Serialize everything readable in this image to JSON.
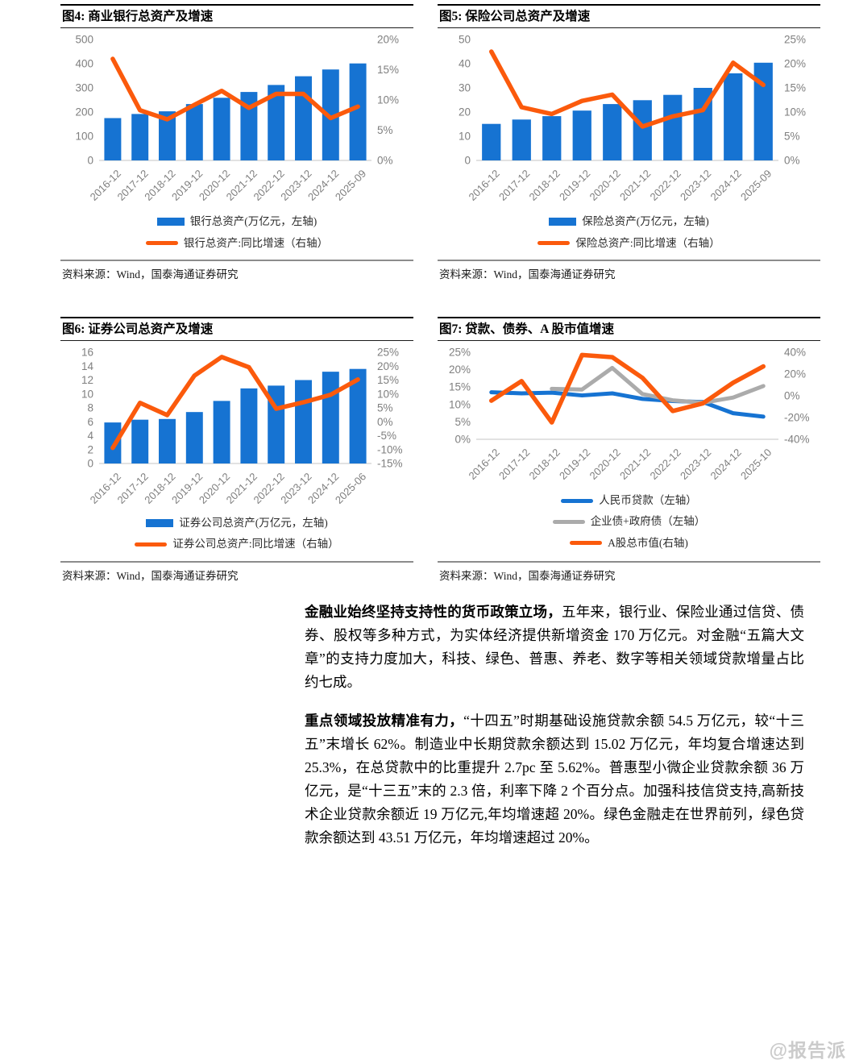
{
  "page": {
    "watermark": "@报告派"
  },
  "figures": [
    {
      "title": "图4:  商业银行总资产及增速",
      "source": "资料来源：Wind，国泰海通证券研究",
      "legend": [
        {
          "label": "银行总资产(万亿元，左轴)",
          "type": "bar",
          "color": "#1673D2"
        },
        {
          "label": "银行总资产:同比增速（右轴）",
          "type": "line",
          "color": "#FB5A0C"
        }
      ],
      "chart_data": {
        "type": "bar+line combo, dual axis",
        "categories": [
          "2016-12",
          "2017-12",
          "2018-12",
          "2019-12",
          "2020-12",
          "2021-12",
          "2022-12",
          "2023-12",
          "2024-12",
          "2025-09"
        ],
        "left_axis": {
          "min": 0,
          "max": 500,
          "step": 100,
          "suffix": ""
        },
        "right_axis": {
          "min": 0,
          "max": 20,
          "step": 5,
          "suffix": "%"
        },
        "series": [
          {
            "name": "银行总资产(万亿元，左轴)",
            "type": "bar",
            "axis": "left",
            "color": "#1673D2",
            "values": [
              175,
              192,
              203,
              233,
              259,
              283,
              312,
              348,
              376,
              401
            ]
          },
          {
            "name": "银行总资产:同比增速（右轴）",
            "type": "line",
            "axis": "right",
            "color": "#FB5A0C",
            "values": [
              16.8,
              8.3,
              6.8,
              9.2,
              11.5,
              8.7,
              11.0,
              11.0,
              7.0,
              8.9
            ]
          }
        ]
      }
    },
    {
      "title": "图5:  保险公司总资产及增速",
      "source": "资料来源：Wind，国泰海通证券研究",
      "legend": [
        {
          "label": "保险总资产(万亿元，左轴)",
          "type": "bar",
          "color": "#1673D2"
        },
        {
          "label": "保险总资产:同比增速（右轴）",
          "type": "line",
          "color": "#FB5A0C"
        }
      ],
      "chart_data": {
        "type": "bar+line combo, dual axis",
        "categories": [
          "2016-12",
          "2017-12",
          "2018-12",
          "2019-12",
          "2020-12",
          "2021-12",
          "2022-12",
          "2023-12",
          "2024-12",
          "2025-09"
        ],
        "left_axis": {
          "min": 0,
          "max": 50,
          "step": 10,
          "suffix": ""
        },
        "right_axis": {
          "min": 0,
          "max": 25,
          "step": 5,
          "suffix": "%"
        },
        "series": [
          {
            "name": "保险总资产(万亿元，左轴)",
            "type": "bar",
            "axis": "left",
            "color": "#1673D2",
            "values": [
              15.1,
              16.9,
              18.3,
              20.6,
              23.3,
              24.9,
              27.1,
              30.0,
              36.0,
              40.4
            ]
          },
          {
            "name": "保险总资产:同比增速（右轴）",
            "type": "line",
            "axis": "right",
            "color": "#FB5A0C",
            "values": [
              22.5,
              11.0,
              9.6,
              12.3,
              13.6,
              7.0,
              9.1,
              10.4,
              20.2,
              15.6
            ]
          }
        ]
      }
    },
    {
      "title": "图6:  证券公司总资产及增速",
      "source": "资料来源：Wind，国泰海通证券研究",
      "legend": [
        {
          "label": "证券公司总资产(万亿元，左轴)",
          "type": "bar",
          "color": "#1673D2"
        },
        {
          "label": "证券公司总资产:同比增速（右轴）",
          "type": "line",
          "color": "#FB5A0C"
        }
      ],
      "chart_data": {
        "type": "bar+line combo, dual axis",
        "categories": [
          "2016-12",
          "2017-12",
          "2018-12",
          "2019-12",
          "2020-12",
          "2021-12",
          "2022-12",
          "2023-12",
          "2024-12",
          "2025-06"
        ],
        "left_axis": {
          "min": 0,
          "max": 16,
          "step": 2,
          "suffix": ""
        },
        "right_axis": {
          "min": -15,
          "max": 25,
          "step": 5,
          "suffix": "%"
        },
        "series": [
          {
            "name": "证券公司总资产(万亿元，左轴)",
            "type": "bar",
            "axis": "left",
            "color": "#1673D2",
            "values": [
              5.9,
              6.3,
              6.4,
              7.4,
              9.0,
              10.8,
              11.2,
              12.0,
              13.2,
              13.6
            ]
          },
          {
            "name": "证券公司总资产:同比增速（右轴）",
            "type": "line",
            "axis": "right",
            "color": "#FB5A0C",
            "values": [
              -9.4,
              6.8,
              2.4,
              16.6,
              23.3,
              19.6,
              4.7,
              7.0,
              9.7,
              15.2
            ]
          }
        ]
      }
    },
    {
      "title": "图7:  贷款、债券、A 股市值增速",
      "source": "资料来源：Wind，国泰海通证券研究",
      "legend": [
        {
          "label": "人民币贷款（左轴）",
          "type": "line",
          "color": "#1673D2"
        },
        {
          "label": "企业债+政府债（左轴）",
          "type": "line",
          "color": "#ABABAB"
        },
        {
          "label": "A股总市值(右轴)",
          "type": "line",
          "color": "#FB5A0C"
        }
      ],
      "chart_data": {
        "type": "line, dual axis",
        "categories": [
          "2016-12",
          "2017-12",
          "2018-12",
          "2019-12",
          "2020-12",
          "2021-12",
          "2022-12",
          "2023-12",
          "2024-12",
          "2025-10"
        ],
        "left_axis": {
          "min": 0,
          "max": 25,
          "step": 5,
          "suffix": "%"
        },
        "right_axis": {
          "min": -40,
          "max": 40,
          "step": 20,
          "suffix": "%"
        },
        "series": [
          {
            "name": "人民币贷款（左轴）",
            "type": "line",
            "axis": "left",
            "color": "#1673D2",
            "values": [
              13.5,
              13.2,
              13.4,
              12.6,
              13.2,
              11.6,
              11.0,
              10.7,
              7.5,
              6.5
            ]
          },
          {
            "name": "企业债+政府债（左轴）",
            "type": "line",
            "axis": "left",
            "color": "#ABABAB",
            "values": [
              null,
              null,
              14.5,
              14.3,
              20.5,
              13.0,
              11.2,
              10.5,
              12.0,
              15.3
            ]
          },
          {
            "name": "A股总市值(右轴)",
            "type": "line",
            "axis": "right",
            "color": "#FB5A0C",
            "values": [
              -4.5,
              13.5,
              -24.5,
              37.5,
              35.5,
              16.5,
              -14.0,
              -7.0,
              12.0,
              27.0
            ]
          }
        ]
      }
    }
  ],
  "paragraphs": [
    {
      "bold": "金融业始终坚持支持性的货币政策立场，",
      "text": "五年来，银行业、保险业通过信贷、债券、股权等多种方式，为实体经济提供新增资金 170 万亿元。对金融“五篇大文章”的支持力度加大，科技、绿色、普惠、养老、数字等相关领域贷款增量占比约七成。"
    },
    {
      "bold": "重点领域投放精准有力，",
      "text": "“十四五”时期基础设施贷款余额 54.5 万亿元，较“十三五”末增长 62%。制造业中长期贷款余额达到 15.02 万亿元，年均复合增速达到 25.3%，在总贷款中的比重提升 2.7pc 至 5.62%。普惠型小微企业贷款余额 36 万亿元，是“十三五”末的 2.3 倍，利率下降 2 个百分点。加强科技信贷支持,高新技术企业贷款余额近 19 万亿元,年均增速超 20%。绿色金融走在世界前列，绿色贷款余额达到 43.51 万亿元，年均增速超过 20%。"
    }
  ]
}
